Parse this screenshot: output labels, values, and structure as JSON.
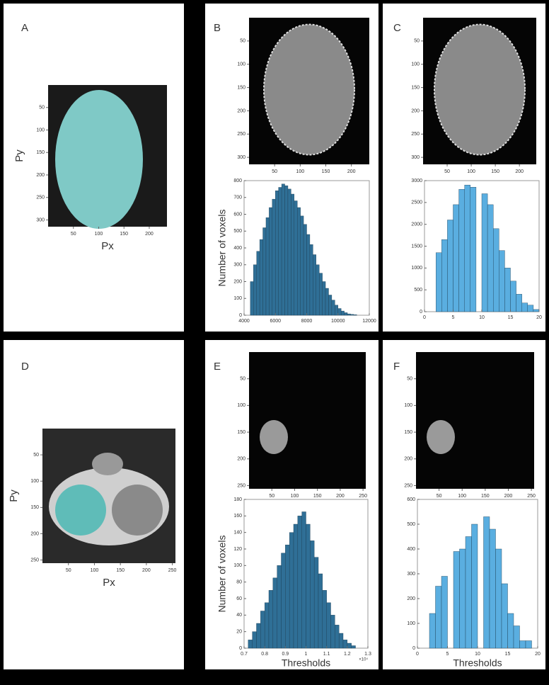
{
  "images": [
    {
      "label": "A",
      "xlim": [
        0,
        235
      ],
      "ylim": [
        0,
        315
      ],
      "xticks": [
        50,
        100,
        150,
        200
      ],
      "yticks": [
        50,
        100,
        150,
        200,
        250,
        300
      ],
      "xlabel": "Px",
      "ylabel": "Py"
    },
    {
      "label": "B",
      "xlim": [
        0,
        235
      ],
      "ylim": [
        0,
        315
      ],
      "xticks": [
        50,
        100,
        150,
        200
      ],
      "yticks": [
        50,
        100,
        150,
        200,
        250,
        300
      ]
    },
    {
      "label": "C",
      "xlim": [
        0,
        235
      ],
      "ylim": [
        0,
        315
      ],
      "xticks": [
        50,
        100,
        150,
        200
      ],
      "yticks": [
        50,
        100,
        150,
        200,
        250,
        300
      ]
    },
    {
      "label": "D",
      "xlim": [
        0,
        256
      ],
      "ylim": [
        0,
        256
      ],
      "xticks": [
        50,
        100,
        150,
        200,
        250
      ],
      "yticks": [
        50,
        100,
        150,
        200,
        250
      ],
      "xlabel": "Px",
      "ylabel": "Py"
    },
    {
      "label": "E",
      "xlim": [
        0,
        256
      ],
      "ylim": [
        0,
        256
      ],
      "xticks": [
        50,
        100,
        150,
        200,
        250
      ],
      "yticks": [
        50,
        100,
        150,
        200,
        250
      ]
    },
    {
      "label": "F",
      "xlim": [
        0,
        256
      ],
      "ylim": [
        0,
        256
      ],
      "xticks": [
        50,
        100,
        150,
        200,
        250
      ],
      "yticks": [
        50,
        100,
        150,
        200,
        250
      ]
    }
  ],
  "chart_data": [
    {
      "type": "histogram",
      "ylabel": "Number of voxels",
      "color": "#2f6f96",
      "bins": [
        4400,
        4600,
        4800,
        5000,
        5200,
        5400,
        5600,
        5800,
        6000,
        6200,
        6400,
        6600,
        6800,
        7000,
        7200,
        7400,
        7600,
        7800,
        8000,
        8200,
        8400,
        8600,
        8800,
        9000,
        9200,
        9400,
        9600,
        9800,
        10000,
        10200,
        10400,
        10600,
        10800,
        11000,
        11200
      ],
      "values": [
        200,
        300,
        380,
        450,
        520,
        580,
        640,
        690,
        740,
        760,
        780,
        770,
        750,
        720,
        680,
        640,
        590,
        540,
        480,
        420,
        360,
        300,
        250,
        200,
        160,
        120,
        90,
        60,
        40,
        25,
        15,
        8,
        5,
        3
      ],
      "xlim": [
        4000,
        12000
      ],
      "xticks": [
        4000,
        6000,
        8000,
        10000,
        12000
      ],
      "ylim": [
        0,
        800
      ],
      "yticks": [
        0,
        100,
        200,
        300,
        400,
        500,
        600,
        700,
        800
      ]
    },
    {
      "type": "histogram",
      "color": "#5aaee0",
      "bins": [
        2,
        3,
        4,
        5,
        6,
        7,
        8,
        9,
        10,
        11,
        12,
        13,
        14,
        15,
        16,
        17,
        18,
        19,
        20
      ],
      "values": [
        1350,
        1650,
        2100,
        2450,
        2800,
        2900,
        2850,
        0,
        2700,
        2450,
        1900,
        1400,
        1000,
        700,
        400,
        200,
        150,
        50
      ],
      "xlim": [
        0,
        20
      ],
      "xticks": [
        0,
        5,
        10,
        15,
        20
      ],
      "ylim": [
        0,
        3000
      ],
      "yticks": [
        0,
        500,
        1000,
        1500,
        2000,
        2500,
        3000
      ]
    },
    {
      "type": "histogram",
      "ylabel": "Number of voxels",
      "xlabel": "Thresholds",
      "x_multiplier": "×10⁴",
      "color": "#2f6f96",
      "bins": [
        0.72,
        0.74,
        0.76,
        0.78,
        0.8,
        0.82,
        0.84,
        0.86,
        0.88,
        0.9,
        0.92,
        0.94,
        0.96,
        0.98,
        1,
        1.02,
        1.04,
        1.06,
        1.08,
        1.1,
        1.12,
        1.14,
        1.16,
        1.18,
        1.2,
        1.22,
        1.24
      ],
      "values": [
        10,
        20,
        30,
        45,
        55,
        70,
        85,
        100,
        115,
        125,
        140,
        150,
        160,
        165,
        150,
        130,
        110,
        90,
        70,
        55,
        40,
        28,
        18,
        10,
        6,
        3
      ],
      "xlim": [
        0.7,
        1.3
      ],
      "xticks": [
        0.7,
        0.8,
        0.9,
        1,
        1.1,
        1.2,
        1.3
      ],
      "ylim": [
        0,
        180
      ],
      "yticks": [
        0,
        20,
        40,
        60,
        80,
        100,
        120,
        140,
        160,
        180
      ]
    },
    {
      "type": "histogram",
      "xlabel": "Thresholds",
      "color": "#5aaee0",
      "bins": [
        2,
        3,
        4,
        5,
        6,
        7,
        8,
        9,
        10,
        11,
        12,
        13,
        14,
        15,
        16,
        17,
        18,
        19
      ],
      "values": [
        140,
        250,
        290,
        0,
        390,
        400,
        450,
        500,
        0,
        530,
        480,
        400,
        260,
        140,
        90,
        30,
        30
      ],
      "xlim": [
        0,
        20
      ],
      "xticks": [
        0,
        5,
        10,
        15,
        20
      ],
      "ylim": [
        0,
        600
      ],
      "yticks": [
        0,
        100,
        200,
        300,
        400,
        500,
        600
      ]
    }
  ]
}
